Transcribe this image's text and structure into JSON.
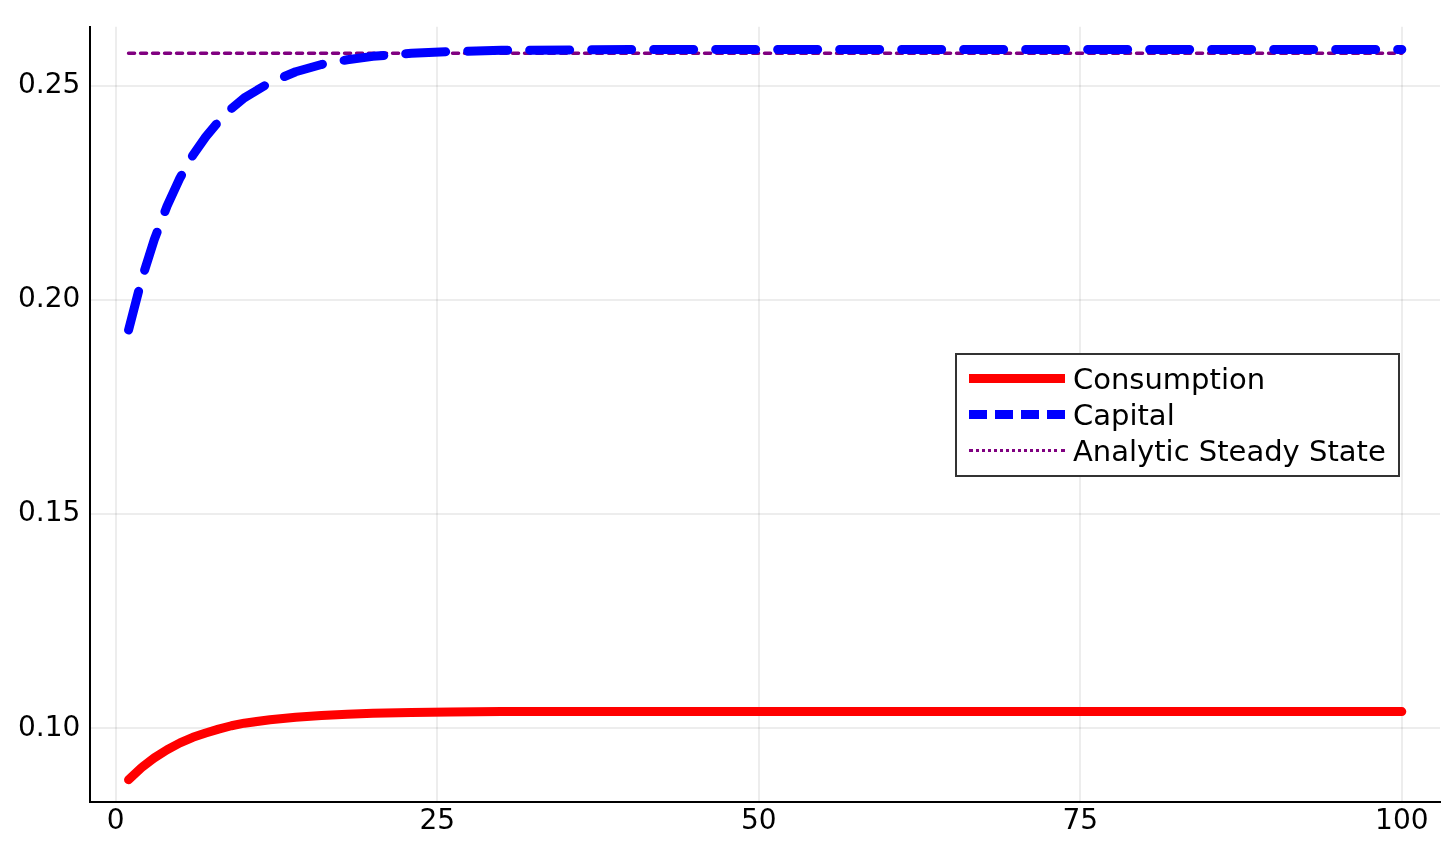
{
  "chart_data": {
    "type": "line",
    "x": [
      1,
      2,
      3,
      4,
      5,
      6,
      7,
      8,
      9,
      10,
      12,
      14,
      16,
      18,
      20,
      23,
      26,
      30,
      40,
      50,
      60,
      70,
      80,
      90,
      100
    ],
    "series": [
      {
        "name": "Consumption",
        "color": "#ff0000",
        "line_style": "solid",
        "values": [
          0.088,
          0.0908,
          0.0931,
          0.095,
          0.0966,
          0.0979,
          0.0989,
          0.0998,
          0.1006,
          0.1012,
          0.102,
          0.1026,
          0.103,
          0.1033,
          0.1035,
          0.1037,
          0.1038,
          0.1039,
          0.1039,
          0.1039,
          0.1039,
          0.1039,
          0.1039,
          0.1039,
          0.1039
        ]
      },
      {
        "name": "Capital",
        "color": "#0000ff",
        "line_style": "dashed",
        "values": [
          0.193,
          0.2046,
          0.2141,
          0.222,
          0.2285,
          0.2338,
          0.2381,
          0.2417,
          0.2447,
          0.2472,
          0.2508,
          0.2533,
          0.255,
          0.2561,
          0.2569,
          0.2576,
          0.258,
          0.2583,
          0.2585,
          0.2585,
          0.2585,
          0.2585,
          0.2585,
          0.2585,
          0.2585
        ]
      },
      {
        "name": "Analytic Steady State",
        "color": "#800080",
        "line_style": "dotted",
        "x": [
          1,
          100
        ],
        "values": [
          0.2576,
          0.2576
        ]
      }
    ],
    "xlim": [
      -1.97,
      102.97
    ],
    "xticks": [
      0,
      25,
      50,
      75,
      100
    ],
    "ylim": [
      0.0827,
      0.2638
    ],
    "yticks": [
      {
        "value": 0.1,
        "label": "0.10"
      },
      {
        "value": 0.15,
        "label": "0.15"
      },
      {
        "value": 0.2,
        "label": "0.20"
      },
      {
        "value": 0.25,
        "label": "0.25"
      }
    ],
    "grid": true,
    "legend": "right",
    "marker": "none"
  }
}
